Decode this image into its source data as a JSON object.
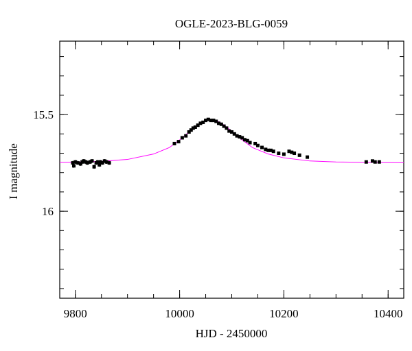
{
  "chart_data": {
    "type": "scatter",
    "title": "OGLE-2023-BLG-0059",
    "x_label": "HJD - 2450000",
    "y_label": "I magnitude",
    "xlim": [
      9770,
      10430
    ],
    "ylim": [
      16.45,
      15.12
    ],
    "xticks": [
      9800,
      10000,
      10200,
      10400
    ],
    "xminorticks": [
      9800,
      9850,
      9900,
      9950,
      10000,
      10050,
      10100,
      10150,
      10200,
      10250,
      10300,
      10350,
      10400
    ],
    "yticks": [
      15.5,
      16
    ],
    "yminorticks": [
      15.2,
      15.3,
      15.4,
      15.5,
      15.6,
      15.7,
      15.8,
      15.9,
      16,
      16.1,
      16.2,
      16.3,
      16.4
    ],
    "series": [
      {
        "type": "scatter",
        "color": "#000000",
        "x": [
          9795,
          9797,
          9800,
          9805,
          9810,
          9813,
          9816,
          9820,
          9823,
          9828,
          9832,
          9836,
          9840,
          9843,
          9846,
          9848,
          9852,
          9856,
          9860,
          9865,
          9990,
          9998,
          10005,
          10012,
          10018,
          10022,
          10026,
          10030,
          10035,
          10040,
          10045,
          10050,
          10055,
          10060,
          10065,
          10070,
          10075,
          10080,
          10085,
          10090,
          10095,
          10100,
          10105,
          10110,
          10115,
          10120,
          10125,
          10130,
          10135,
          10145,
          10150,
          10158,
          10165,
          10170,
          10175,
          10180,
          10190,
          10200,
          10210,
          10215,
          10220,
          10230,
          10245,
          10358,
          10370,
          10375,
          10383
        ],
        "values": [
          15.75,
          15.765,
          15.745,
          15.75,
          15.755,
          15.745,
          15.74,
          15.745,
          15.75,
          15.745,
          15.74,
          15.77,
          15.75,
          15.745,
          15.76,
          15.745,
          15.75,
          15.74,
          15.745,
          15.75,
          15.65,
          15.64,
          15.62,
          15.61,
          15.59,
          15.58,
          15.57,
          15.565,
          15.555,
          15.545,
          15.54,
          15.53,
          15.525,
          15.53,
          15.53,
          15.535,
          15.545,
          15.55,
          15.56,
          15.57,
          15.585,
          15.59,
          15.6,
          15.61,
          15.615,
          15.62,
          15.63,
          15.635,
          15.645,
          15.65,
          15.66,
          15.67,
          15.68,
          15.685,
          15.685,
          15.69,
          15.7,
          15.705,
          15.69,
          15.695,
          15.7,
          15.71,
          15.72,
          15.745,
          15.74,
          15.745,
          15.745
        ],
        "errors": [
          0.01,
          0.01,
          0.01,
          0.01,
          0.01,
          0.01,
          0.01,
          0.01,
          0.01,
          0.01,
          0.01,
          0.01,
          0.01,
          0.01,
          0.01,
          0.01,
          0.01,
          0.01,
          0.01,
          0.01,
          0.008,
          0.008,
          0.008,
          0.008,
          0.008,
          0.008,
          0.008,
          0.008,
          0.008,
          0.008,
          0.008,
          0.008,
          0.008,
          0.008,
          0.008,
          0.008,
          0.008,
          0.008,
          0.008,
          0.008,
          0.008,
          0.008,
          0.008,
          0.008,
          0.008,
          0.008,
          0.008,
          0.008,
          0.008,
          0.008,
          0.008,
          0.008,
          0.008,
          0.008,
          0.008,
          0.008,
          0.008,
          0.008,
          0.008,
          0.008,
          0.008,
          0.008,
          0.008,
          0.008,
          0.008,
          0.008,
          0.008
        ]
      },
      {
        "type": "line",
        "color": "#ff00ff",
        "x": [
          9770,
          9800,
          9850,
          9900,
          9950,
          9980,
          10000,
          10020,
          10040,
          10050,
          10060,
          10070,
          10080,
          10100,
          10120,
          10140,
          10170,
          10200,
          10250,
          10300,
          10350,
          10430
        ],
        "values": [
          15.747,
          15.746,
          15.742,
          15.732,
          15.704,
          15.671,
          15.631,
          15.585,
          15.544,
          15.531,
          15.526,
          15.531,
          15.544,
          15.585,
          15.631,
          15.671,
          15.704,
          15.724,
          15.74,
          15.745,
          15.747,
          15.749
        ]
      }
    ]
  }
}
